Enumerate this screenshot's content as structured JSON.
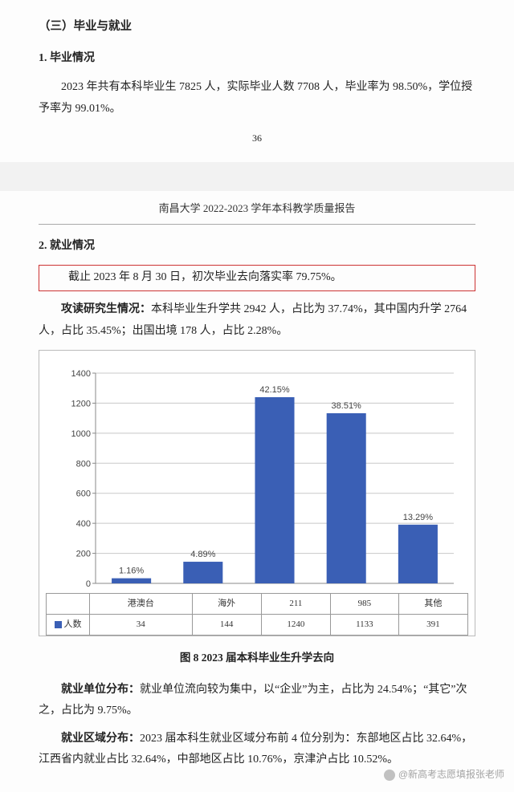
{
  "page1": {
    "section_title": "（三）毕业与就业",
    "sub1_title": "1. 毕业情况",
    "para1": "2023 年共有本科毕业生 7825 人，实际毕业人数 7708 人，毕业率为 98.50%，学位授予率为 99.01%。",
    "page_num": "36"
  },
  "page2": {
    "doc_header": "南昌大学 2022-2023 学年本科教学质量报告",
    "sub2_title": "2. 就业情况",
    "highlight": "截止 2023 年 8 月 30 日，初次毕业去向落实率 79.75%。",
    "grad_para": "攻读研究生情况：本科毕业生升学共 2942 人，占比为 37.74%，其中国内升学 2764 人，占比 35.45%；出国出境 178 人，占比 2.28%。",
    "chart": {
      "type": "bar",
      "categories": [
        "港澳台",
        "海外",
        "211",
        "985",
        "其他"
      ],
      "values": [
        34,
        144,
        1240,
        1133,
        391
      ],
      "percent_labels": [
        "1.16%",
        "4.89%",
        "42.15%",
        "38.51%",
        "13.29%"
      ],
      "series_name": "人数",
      "bar_color": "#3a5fb5",
      "ylim": [
        0,
        1400
      ],
      "ytick_step": 200,
      "yticks": [
        "0",
        "200",
        "400",
        "600",
        "800",
        "1000",
        "1200",
        "1400"
      ],
      "grid_color": "#c8c8c8",
      "axis_color": "#888888",
      "label_color": "#444444",
      "label_fontsize": 11,
      "background_color": "#ffffff",
      "bar_width_ratio": 0.55
    },
    "chart_caption": "图 8 2023 届本科毕业生升学去向",
    "dist1": "就业单位分布：就业单位流向较为集中，以“企业”为主，占比为 24.54%；“其它”次之，占比为 9.75%。",
    "dist2": "就业区域分布：2023 届本科生就业区域分布前 4 位分别为：东部地区占比 32.64%，江西省内就业占比 32.64%，中部地区占比 10.76%，京津沪占比 10.52%。",
    "watermark": "@新高考志愿填报张老师"
  }
}
